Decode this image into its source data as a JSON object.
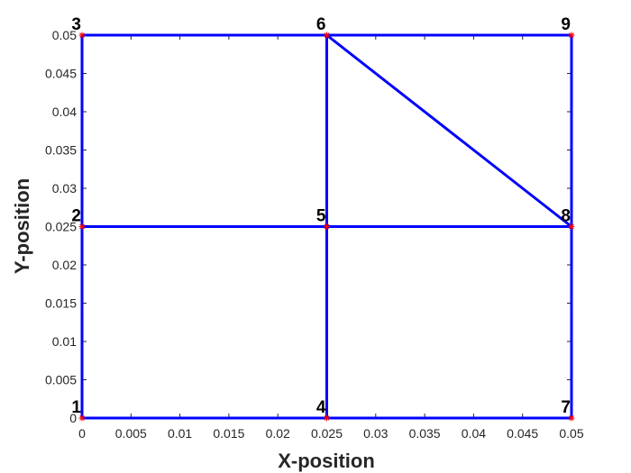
{
  "chart_data": {
    "type": "line",
    "title": "",
    "xlabel": "X-position",
    "ylabel": "Y-position",
    "xlim": [
      0,
      0.05
    ],
    "ylim": [
      0,
      0.05
    ],
    "grid": false,
    "xticks": [
      "0",
      "0.005",
      "0.01",
      "0.015",
      "0.02",
      "0.025",
      "0.03",
      "0.035",
      "0.04",
      "0.045",
      "0.05"
    ],
    "yticks": [
      "0",
      "0.005",
      "0.01",
      "0.015",
      "0.02",
      "0.025",
      "0.03",
      "0.035",
      "0.04",
      "0.045",
      "0.05"
    ],
    "nodes": [
      {
        "id": "1",
        "x": 0,
        "y": 0
      },
      {
        "id": "2",
        "x": 0,
        "y": 0.025
      },
      {
        "id": "3",
        "x": 0,
        "y": 0.05
      },
      {
        "id": "4",
        "x": 0.025,
        "y": 0
      },
      {
        "id": "5",
        "x": 0.025,
        "y": 0.025
      },
      {
        "id": "6",
        "x": 0.025,
        "y": 0.05
      },
      {
        "id": "7",
        "x": 0.05,
        "y": 0
      },
      {
        "id": "8",
        "x": 0.05,
        "y": 0.025
      },
      {
        "id": "9",
        "x": 0.05,
        "y": 0.05
      }
    ],
    "edges": [
      [
        "1",
        "4"
      ],
      [
        "4",
        "7"
      ],
      [
        "2",
        "5"
      ],
      [
        "5",
        "8"
      ],
      [
        "3",
        "6"
      ],
      [
        "6",
        "9"
      ],
      [
        "1",
        "2"
      ],
      [
        "2",
        "3"
      ],
      [
        "4",
        "5"
      ],
      [
        "5",
        "6"
      ],
      [
        "7",
        "8"
      ],
      [
        "8",
        "9"
      ],
      [
        "6",
        "8"
      ]
    ],
    "line_color": "#0000ff",
    "marker_color": "#ff0000",
    "marker": "asterisk"
  }
}
